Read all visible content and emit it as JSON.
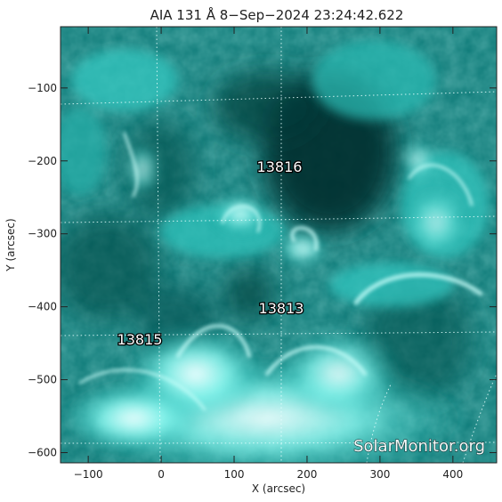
{
  "image": {
    "title": "AIA 131 Å  8−Sep−2024 23:24:42.622",
    "x_axis_label": "X (arcsec)",
    "y_axis_label": "Y (arcsec)",
    "x_ticks": [
      "−100",
      "0",
      "100",
      "200",
      "300",
      "400"
    ],
    "y_ticks": [
      "−100",
      "−200",
      "−300",
      "−400",
      "−500",
      "−600"
    ],
    "x_range": [
      -138,
      460
    ],
    "y_range": [
      -614,
      -16
    ],
    "active_regions": [
      "13816",
      "13813",
      "13815"
    ],
    "watermark": "SolarMonitor.org",
    "colors": {
      "base": "#0d7a78",
      "bright": "#7af6ee",
      "dark": "#083f3e",
      "grid": "#e8ffff"
    }
  }
}
